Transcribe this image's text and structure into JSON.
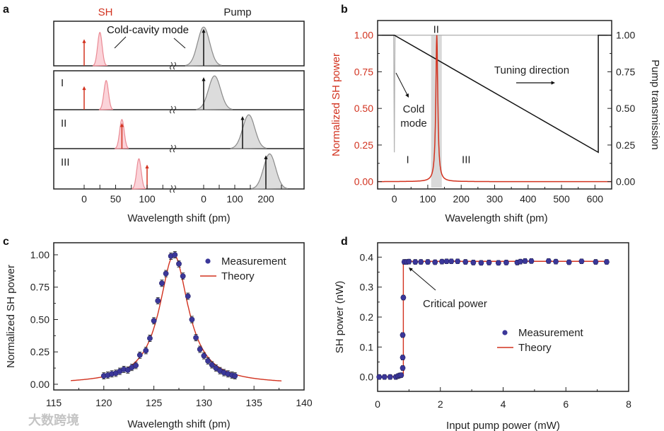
{
  "colors": {
    "sh": "#d2321f",
    "sh_mode_fill": "#fbd3d9",
    "sh_mode_stroke": "#ea8a94",
    "pump_mode_fill": "#dcdcdc",
    "pump_mode_stroke": "#8a8a8a",
    "marker": "#3b3799",
    "theory": "#d2321f",
    "band": "#d9d9d9"
  },
  "watermark": "大数跨境",
  "chart_data": [
    {
      "panel": "a",
      "type": "line",
      "title_sh": "SH",
      "title_pump": "Pump",
      "annotation": "Cold-cavity mode",
      "xlabel": "Wavelength shift (pm)",
      "sh_ticks": [
        0,
        50,
        100
      ],
      "pump_ticks": [
        0,
        100,
        200
      ],
      "rows": [
        {
          "label": "",
          "sh_arrow": 0,
          "sh_mode": 25,
          "pump_arrow": 0,
          "pump_mode": 0
        },
        {
          "label": "I",
          "sh_arrow": 0,
          "sh_mode": 35,
          "pump_arrow": 0,
          "pump_mode": 35
        },
        {
          "label": "II",
          "sh_arrow": 60,
          "sh_mode": 60,
          "pump_arrow": 125,
          "pump_mode": 145
        },
        {
          "label": "III",
          "sh_arrow": 100,
          "sh_mode": 87,
          "pump_arrow": 200,
          "pump_mode": 212
        }
      ]
    },
    {
      "panel": "b",
      "type": "line",
      "xlabel": "Wavelength shift (pm)",
      "ylabel": "Normalized SH power",
      "ylabel_right": "Pump transmission",
      "xlim": [
        -50,
        650
      ],
      "ylim": [
        -0.05,
        1.1
      ],
      "xticks": [
        0,
        100,
        200,
        300,
        400,
        500,
        600
      ],
      "yticks": [
        "0.00",
        "0.25",
        "0.50",
        "0.75",
        "1.00"
      ],
      "sh_peak": {
        "center": 127,
        "hwhm": 3.5
      },
      "band": [
        110,
        142
      ],
      "pump_transmission": {
        "x": [
          -50,
          0,
          610,
          610,
          650
        ],
        "y": [
          1.0,
          1.0,
          0.2,
          1.0,
          1.0
        ]
      },
      "cold_mode": {
        "x": [
          -50,
          -2,
          0,
          2,
          650
        ],
        "y": [
          1.0,
          1.0,
          0.2,
          1.0,
          1.0
        ]
      },
      "region_labels": [
        {
          "text": "I",
          "x": 40,
          "y": 0.15
        },
        {
          "text": "II",
          "x": 125,
          "y": 1.04
        },
        {
          "text": "III",
          "x": 215,
          "y": 0.15
        }
      ],
      "annotations": {
        "cold_mode_line1": "Cold",
        "cold_mode_line2": "mode",
        "tuning": "Tuning direction"
      }
    },
    {
      "panel": "c",
      "type": "scatter",
      "xlabel": "Wavelength shift (pm)",
      "ylabel": "Normalized SH power",
      "xlim": [
        115,
        140
      ],
      "ylim": [
        -0.044,
        1.093
      ],
      "xticks": [
        115,
        120,
        125,
        130,
        135,
        140
      ],
      "yticks": [
        "0.00",
        "0.25",
        "0.50",
        "0.75",
        "1.00"
      ],
      "legend": {
        "measurement": "Measurement",
        "theory": "Theory",
        "placement": "top-right"
      },
      "theory": {
        "center": 127,
        "hwhm": 1.75,
        "xrange": [
          116.7,
          137.8
        ]
      },
      "yerr": 0.025,
      "measurement": {
        "x": [
          120.0,
          120.4,
          120.8,
          121.2,
          121.6,
          122.0,
          122.4,
          122.8,
          123.2,
          123.6,
          124.2,
          124.6,
          125.0,
          125.4,
          125.8,
          126.2,
          126.7,
          127.1,
          127.5,
          127.9,
          128.4,
          128.8,
          129.2,
          129.6,
          130.0,
          130.4,
          130.8,
          131.2,
          131.6,
          132.0,
          132.4,
          132.8,
          133.1
        ],
        "y": [
          0.065,
          0.07,
          0.08,
          0.085,
          0.1,
          0.115,
          0.11,
          0.13,
          0.145,
          0.225,
          0.26,
          0.355,
          0.49,
          0.645,
          0.78,
          0.855,
          0.99,
          1.0,
          0.93,
          0.835,
          0.68,
          0.5,
          0.36,
          0.27,
          0.22,
          0.18,
          0.15,
          0.125,
          0.105,
          0.09,
          0.08,
          0.07,
          0.065
        ]
      }
    },
    {
      "panel": "d",
      "type": "scatter",
      "xlabel": "Input pump power (mW)",
      "ylabel": "SH power (nW)",
      "xlim": [
        0,
        8
      ],
      "ylim": [
        -0.048,
        0.448
      ],
      "xticks": [
        0,
        2,
        4,
        6,
        8
      ],
      "yticks": [
        "0.0",
        "0.1",
        "0.2",
        "0.3",
        "0.4"
      ],
      "legend": {
        "measurement": "Measurement",
        "theory": "Theory",
        "placement": "center-right"
      },
      "annotation": "Critical power",
      "theory": {
        "x": [
          0,
          0.8,
          0.82,
          0.82,
          7.3
        ],
        "y": [
          0.0,
          0.003,
          0.003,
          0.386,
          0.386
        ]
      },
      "yerr": 0.008,
      "measurement": {
        "x": [
          0.05,
          0.22,
          0.4,
          0.58,
          0.65,
          0.7,
          0.75,
          0.8,
          0.8,
          0.8,
          0.82,
          0.85,
          0.92,
          1.0,
          1.2,
          1.38,
          1.6,
          1.83,
          2.05,
          2.2,
          2.35,
          2.55,
          2.8,
          3.05,
          3.3,
          3.55,
          3.85,
          4.1,
          4.45,
          4.55,
          4.7,
          4.9,
          5.45,
          5.68,
          6.1,
          6.5,
          6.95,
          7.3
        ],
        "y": [
          0.0,
          0.0,
          0.0,
          0.0,
          0.003,
          0.005,
          0.006,
          0.03,
          0.065,
          0.14,
          0.265,
          0.384,
          0.384,
          0.385,
          0.384,
          0.384,
          0.384,
          0.383,
          0.385,
          0.386,
          0.386,
          0.386,
          0.384,
          0.382,
          0.381,
          0.382,
          0.381,
          0.382,
          0.382,
          0.385,
          0.387,
          0.387,
          0.387,
          0.385,
          0.383,
          0.386,
          0.384,
          0.384
        ]
      }
    }
  ]
}
